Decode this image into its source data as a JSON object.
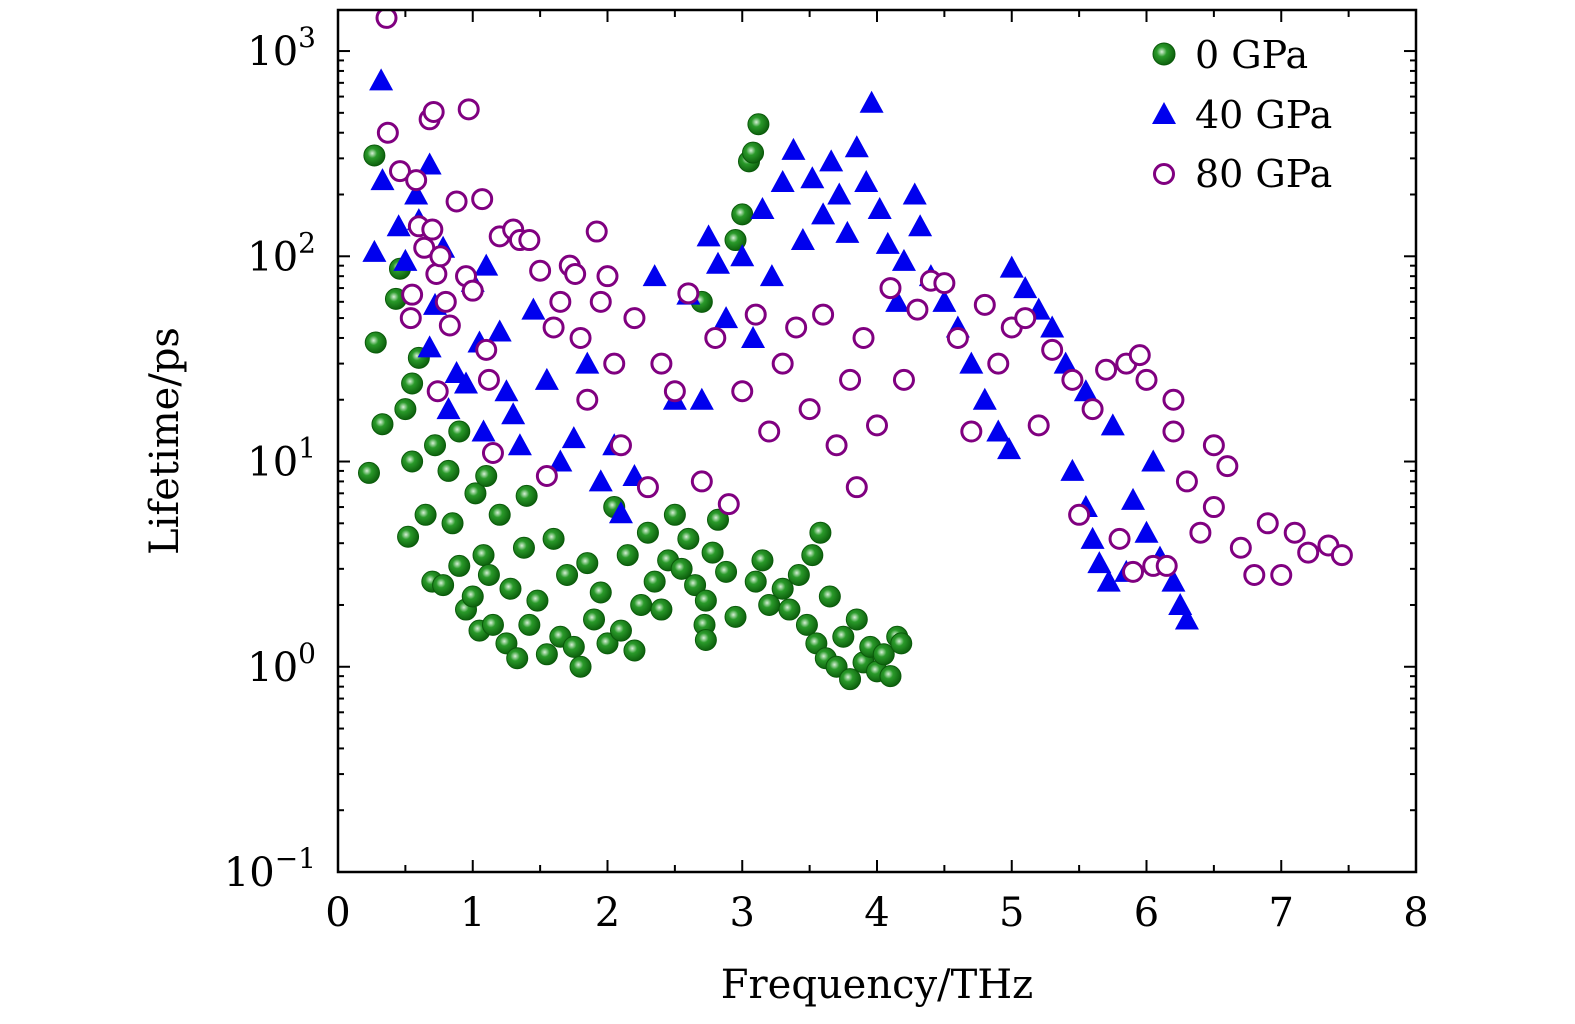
{
  "chart_data": {
    "type": "scatter",
    "title": "",
    "xlabel": "Frequency/THz",
    "ylabel": "Lifetime/ps",
    "xlim": [
      0,
      8
    ],
    "ylim_log10": [
      -1,
      3.2
    ],
    "yscale": "log",
    "x_ticks": [
      "0",
      "1",
      "2",
      "3",
      "4",
      "5",
      "6",
      "7",
      "8"
    ],
    "y_ticks": [
      {
        "base": "10",
        "exp": "−1",
        "value": 0.1
      },
      {
        "base": "10",
        "exp": "0",
        "value": 1
      },
      {
        "base": "10",
        "exp": "1",
        "value": 10
      },
      {
        "base": "10",
        "exp": "2",
        "value": 100
      },
      {
        "base": "10",
        "exp": "3",
        "value": 1000
      }
    ],
    "legend_position": "top-right",
    "series": [
      {
        "name": "0 GPa",
        "marker": "filled-circle",
        "color": "#138a13",
        "points": [
          [
            0.23,
            8.8
          ],
          [
            0.27,
            310
          ],
          [
            0.28,
            38
          ],
          [
            0.33,
            15.2
          ],
          [
            0.43,
            62
          ],
          [
            0.46,
            87
          ],
          [
            0.5,
            18
          ],
          [
            0.52,
            4.3
          ],
          [
            0.55,
            24
          ],
          [
            0.55,
            10
          ],
          [
            0.6,
            32
          ],
          [
            0.65,
            5.5
          ],
          [
            0.7,
            2.6
          ],
          [
            0.72,
            12
          ],
          [
            0.78,
            2.5
          ],
          [
            0.82,
            9
          ],
          [
            0.85,
            5
          ],
          [
            0.9,
            3.1
          ],
          [
            0.95,
            1.9
          ],
          [
            1.0,
            2.2
          ],
          [
            1.02,
            7
          ],
          [
            1.05,
            1.5
          ],
          [
            1.08,
            3.5
          ],
          [
            1.12,
            2.8
          ],
          [
            1.15,
            1.6
          ],
          [
            1.2,
            5.5
          ],
          [
            1.25,
            1.3
          ],
          [
            1.28,
            2.4
          ],
          [
            1.33,
            1.1
          ],
          [
            1.38,
            3.8
          ],
          [
            1.42,
            1.6
          ],
          [
            1.48,
            2.1
          ],
          [
            1.55,
            1.15
          ],
          [
            1.6,
            4.2
          ],
          [
            1.65,
            1.4
          ],
          [
            1.7,
            2.8
          ],
          [
            1.75,
            1.25
          ],
          [
            1.8,
            1.0
          ],
          [
            1.85,
            3.2
          ],
          [
            1.9,
            1.7
          ],
          [
            1.95,
            2.3
          ],
          [
            2.0,
            1.3
          ],
          [
            2.05,
            6
          ],
          [
            2.1,
            1.5
          ],
          [
            2.15,
            3.5
          ],
          [
            2.2,
            1.2
          ],
          [
            2.25,
            2.0
          ],
          [
            2.3,
            4.5
          ],
          [
            2.35,
            2.6
          ],
          [
            2.4,
            1.9
          ],
          [
            2.45,
            3.3
          ],
          [
            2.5,
            5.5
          ],
          [
            2.55,
            3.0
          ],
          [
            2.6,
            4.2
          ],
          [
            2.65,
            2.5
          ],
          [
            2.72,
            1.6
          ],
          [
            2.73,
            1.35
          ],
          [
            2.73,
            2.1
          ],
          [
            2.78,
            3.6
          ],
          [
            2.82,
            5.2
          ],
          [
            2.88,
            2.9
          ],
          [
            2.95,
            1.75
          ],
          [
            3.0,
            160
          ],
          [
            3.05,
            290
          ],
          [
            3.08,
            320
          ],
          [
            3.12,
            440
          ],
          [
            3.1,
            2.6
          ],
          [
            3.15,
            3.3
          ],
          [
            3.2,
            2.0
          ],
          [
            3.3,
            2.4
          ],
          [
            3.35,
            1.9
          ],
          [
            3.42,
            2.8
          ],
          [
            3.48,
            1.6
          ],
          [
            3.52,
            3.5
          ],
          [
            3.55,
            1.3
          ],
          [
            3.58,
            4.5
          ],
          [
            3.62,
            1.1
          ],
          [
            3.65,
            2.2
          ],
          [
            3.7,
            1.0
          ],
          [
            3.75,
            1.4
          ],
          [
            3.8,
            0.87
          ],
          [
            3.85,
            1.7
          ],
          [
            3.9,
            1.05
          ],
          [
            3.95,
            1.25
          ],
          [
            4.0,
            0.95
          ],
          [
            4.05,
            1.15
          ],
          [
            4.1,
            0.9
          ],
          [
            4.15,
            1.4
          ],
          [
            4.18,
            1.3
          ],
          [
            2.7,
            60
          ],
          [
            0.9,
            14
          ],
          [
            1.1,
            8.5
          ],
          [
            1.4,
            6.8
          ],
          [
            2.95,
            120
          ]
        ]
      },
      {
        "name": "40 GPa",
        "marker": "filled-triangle",
        "color": "#0000ee",
        "points": [
          [
            0.27,
            105
          ],
          [
            0.32,
            720
          ],
          [
            0.33,
            235
          ],
          [
            0.45,
            140
          ],
          [
            0.5,
            95
          ],
          [
            0.58,
            200
          ],
          [
            0.6,
            150
          ],
          [
            0.68,
            280
          ],
          [
            0.68,
            36
          ],
          [
            0.72,
            58
          ],
          [
            0.78,
            110
          ],
          [
            0.82,
            18
          ],
          [
            0.88,
            27
          ],
          [
            0.95,
            24
          ],
          [
            1.0,
            75
          ],
          [
            1.05,
            38
          ],
          [
            1.1,
            90
          ],
          [
            1.08,
            14
          ],
          [
            1.2,
            43
          ],
          [
            1.25,
            22
          ],
          [
            1.3,
            17
          ],
          [
            1.35,
            12
          ],
          [
            1.45,
            55
          ],
          [
            1.55,
            25
          ],
          [
            1.65,
            10
          ],
          [
            1.75,
            13
          ],
          [
            1.85,
            30
          ],
          [
            1.95,
            8
          ],
          [
            2.05,
            12
          ],
          [
            2.1,
            5.6
          ],
          [
            2.2,
            8.5
          ],
          [
            2.35,
            80
          ],
          [
            2.5,
            20
          ],
          [
            2.6,
            65
          ],
          [
            2.7,
            20
          ],
          [
            2.75,
            125
          ],
          [
            2.82,
            92
          ],
          [
            2.88,
            50
          ],
          [
            3.0,
            100
          ],
          [
            3.08,
            40
          ],
          [
            3.15,
            170
          ],
          [
            3.22,
            80
          ],
          [
            3.3,
            230
          ],
          [
            3.38,
            330
          ],
          [
            3.45,
            120
          ],
          [
            3.52,
            240
          ],
          [
            3.6,
            160
          ],
          [
            3.66,
            290
          ],
          [
            3.72,
            200
          ],
          [
            3.78,
            130
          ],
          [
            3.85,
            340
          ],
          [
            3.92,
            230
          ],
          [
            3.96,
            560
          ],
          [
            4.02,
            170
          ],
          [
            4.08,
            115
          ],
          [
            4.15,
            60
          ],
          [
            4.2,
            95
          ],
          [
            4.28,
            200
          ],
          [
            4.32,
            140
          ],
          [
            4.4,
            80
          ],
          [
            4.5,
            60
          ],
          [
            4.6,
            45
          ],
          [
            4.7,
            30
          ],
          [
            4.8,
            20
          ],
          [
            4.9,
            14
          ],
          [
            4.98,
            11.5
          ],
          [
            5.0,
            88
          ],
          [
            5.1,
            70
          ],
          [
            5.2,
            55
          ],
          [
            5.3,
            45
          ],
          [
            5.4,
            30
          ],
          [
            5.45,
            9
          ],
          [
            5.55,
            6
          ],
          [
            5.6,
            4.2
          ],
          [
            5.65,
            3.2
          ],
          [
            5.72,
            2.6
          ],
          [
            5.85,
            2.9
          ],
          [
            5.9,
            6.5
          ],
          [
            6.0,
            4.5
          ],
          [
            6.1,
            3.4
          ],
          [
            6.2,
            2.6
          ],
          [
            6.25,
            2.0
          ],
          [
            6.3,
            1.7
          ],
          [
            6.05,
            10
          ],
          [
            5.75,
            15
          ],
          [
            5.55,
            22
          ]
        ]
      },
      {
        "name": "80 GPa",
        "marker": "open-circle",
        "color": "#800080",
        "points": [
          [
            0.36,
            1450
          ],
          [
            0.37,
            400
          ],
          [
            0.46,
            260
          ],
          [
            0.54,
            50
          ],
          [
            0.55,
            65
          ],
          [
            0.58,
            235
          ],
          [
            0.6,
            140
          ],
          [
            0.64,
            110
          ],
          [
            0.68,
            465
          ],
          [
            0.71,
            505
          ],
          [
            0.7,
            135
          ],
          [
            0.73,
            82
          ],
          [
            0.74,
            22
          ],
          [
            0.76,
            100
          ],
          [
            0.8,
            60
          ],
          [
            0.83,
            46
          ],
          [
            0.88,
            185
          ],
          [
            0.95,
            80
          ],
          [
            0.97,
            520
          ],
          [
            1.0,
            68
          ],
          [
            1.07,
            190
          ],
          [
            1.1,
            35
          ],
          [
            1.12,
            25
          ],
          [
            1.15,
            11
          ],
          [
            1.2,
            125
          ],
          [
            1.3,
            135
          ],
          [
            1.35,
            120
          ],
          [
            1.42,
            120
          ],
          [
            1.5,
            85
          ],
          [
            1.55,
            8.5
          ],
          [
            1.6,
            45
          ],
          [
            1.65,
            60
          ],
          [
            1.72,
            90
          ],
          [
            1.76,
            82
          ],
          [
            1.8,
            40
          ],
          [
            1.85,
            20
          ],
          [
            1.92,
            132
          ],
          [
            1.95,
            60
          ],
          [
            2.0,
            80
          ],
          [
            2.05,
            30
          ],
          [
            2.1,
            12
          ],
          [
            2.2,
            50
          ],
          [
            2.3,
            7.5
          ],
          [
            2.4,
            30
          ],
          [
            2.5,
            22
          ],
          [
            2.6,
            66
          ],
          [
            2.7,
            8
          ],
          [
            2.8,
            40
          ],
          [
            2.9,
            6.2
          ],
          [
            3.0,
            22
          ],
          [
            3.1,
            52
          ],
          [
            3.2,
            14
          ],
          [
            3.3,
            30
          ],
          [
            3.4,
            45
          ],
          [
            3.5,
            18
          ],
          [
            3.6,
            52
          ],
          [
            3.7,
            12
          ],
          [
            3.8,
            25
          ],
          [
            3.85,
            7.5
          ],
          [
            3.9,
            40
          ],
          [
            4.0,
            15
          ],
          [
            4.1,
            70
          ],
          [
            4.2,
            25
          ],
          [
            4.3,
            55
          ],
          [
            4.4,
            76
          ],
          [
            4.5,
            74
          ],
          [
            4.6,
            40
          ],
          [
            4.7,
            14
          ],
          [
            4.8,
            58
          ],
          [
            4.9,
            30
          ],
          [
            5.0,
            45
          ],
          [
            5.1,
            50
          ],
          [
            5.2,
            15
          ],
          [
            5.3,
            35
          ],
          [
            5.45,
            25
          ],
          [
            5.5,
            5.5
          ],
          [
            5.6,
            18
          ],
          [
            5.7,
            28
          ],
          [
            5.8,
            4.2
          ],
          [
            5.85,
            30
          ],
          [
            5.9,
            2.9
          ],
          [
            6.0,
            25
          ],
          [
            6.05,
            3.1
          ],
          [
            6.15,
            3.1
          ],
          [
            6.2,
            14
          ],
          [
            6.3,
            8
          ],
          [
            6.4,
            4.5
          ],
          [
            6.5,
            6
          ],
          [
            6.6,
            9.5
          ],
          [
            6.7,
            3.8
          ],
          [
            6.8,
            2.8
          ],
          [
            6.9,
            5
          ],
          [
            7.0,
            2.8
          ],
          [
            7.1,
            4.5
          ],
          [
            7.2,
            3.6
          ],
          [
            7.35,
            3.9
          ],
          [
            7.45,
            3.5
          ],
          [
            6.5,
            12
          ],
          [
            6.2,
            20
          ],
          [
            5.95,
            33
          ]
        ]
      }
    ]
  }
}
